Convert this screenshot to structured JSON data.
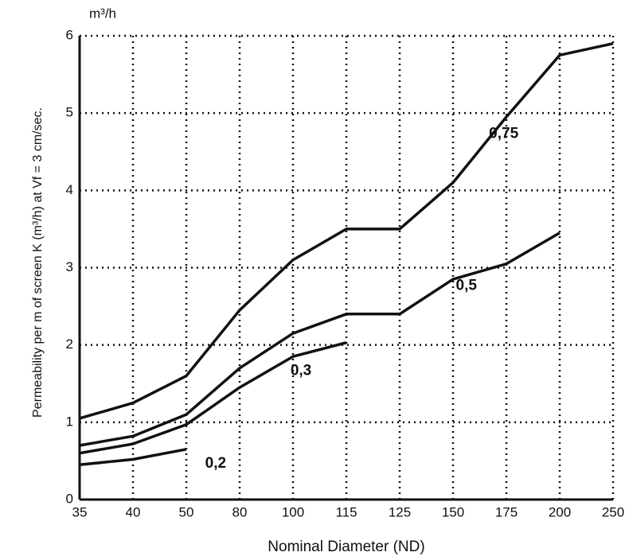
{
  "chart_data": {
    "type": "line",
    "y_label": "Permeability per m of screen K (m³/h) at Vf = 3 cm/sec.",
    "y_unit": "m³/h",
    "x_label": "Nominal Diameter  (ND)",
    "categories": [
      "35",
      "40",
      "50",
      "80",
      "100",
      "115",
      "125",
      "150",
      "175",
      "200",
      "250"
    ],
    "series": [
      {
        "name": "0,75",
        "color": "#111111",
        "values": [
          1.05,
          1.25,
          1.6,
          2.45,
          3.1,
          3.5,
          3.5,
          4.1,
          4.95,
          5.75,
          5.9
        ]
      },
      {
        "name": "0,5",
        "color": "#111111",
        "values": [
          0.7,
          0.82,
          1.1,
          1.7,
          2.15,
          2.4,
          2.4,
          2.85,
          3.05,
          3.45,
          null
        ]
      },
      {
        "name": "0,3",
        "color": "#111111",
        "values": [
          0.6,
          0.72,
          0.97,
          1.45,
          1.85,
          2.03,
          null,
          null,
          null,
          null,
          null
        ]
      },
      {
        "name": "0,2",
        "color": "#111111",
        "values": [
          0.45,
          0.52,
          0.65,
          null,
          null,
          null,
          null,
          null,
          null,
          null,
          null
        ]
      }
    ],
    "ylim": [
      0,
      6
    ],
    "yticks": [
      0,
      1,
      2,
      3,
      4,
      5,
      6
    ],
    "grid": true
  }
}
